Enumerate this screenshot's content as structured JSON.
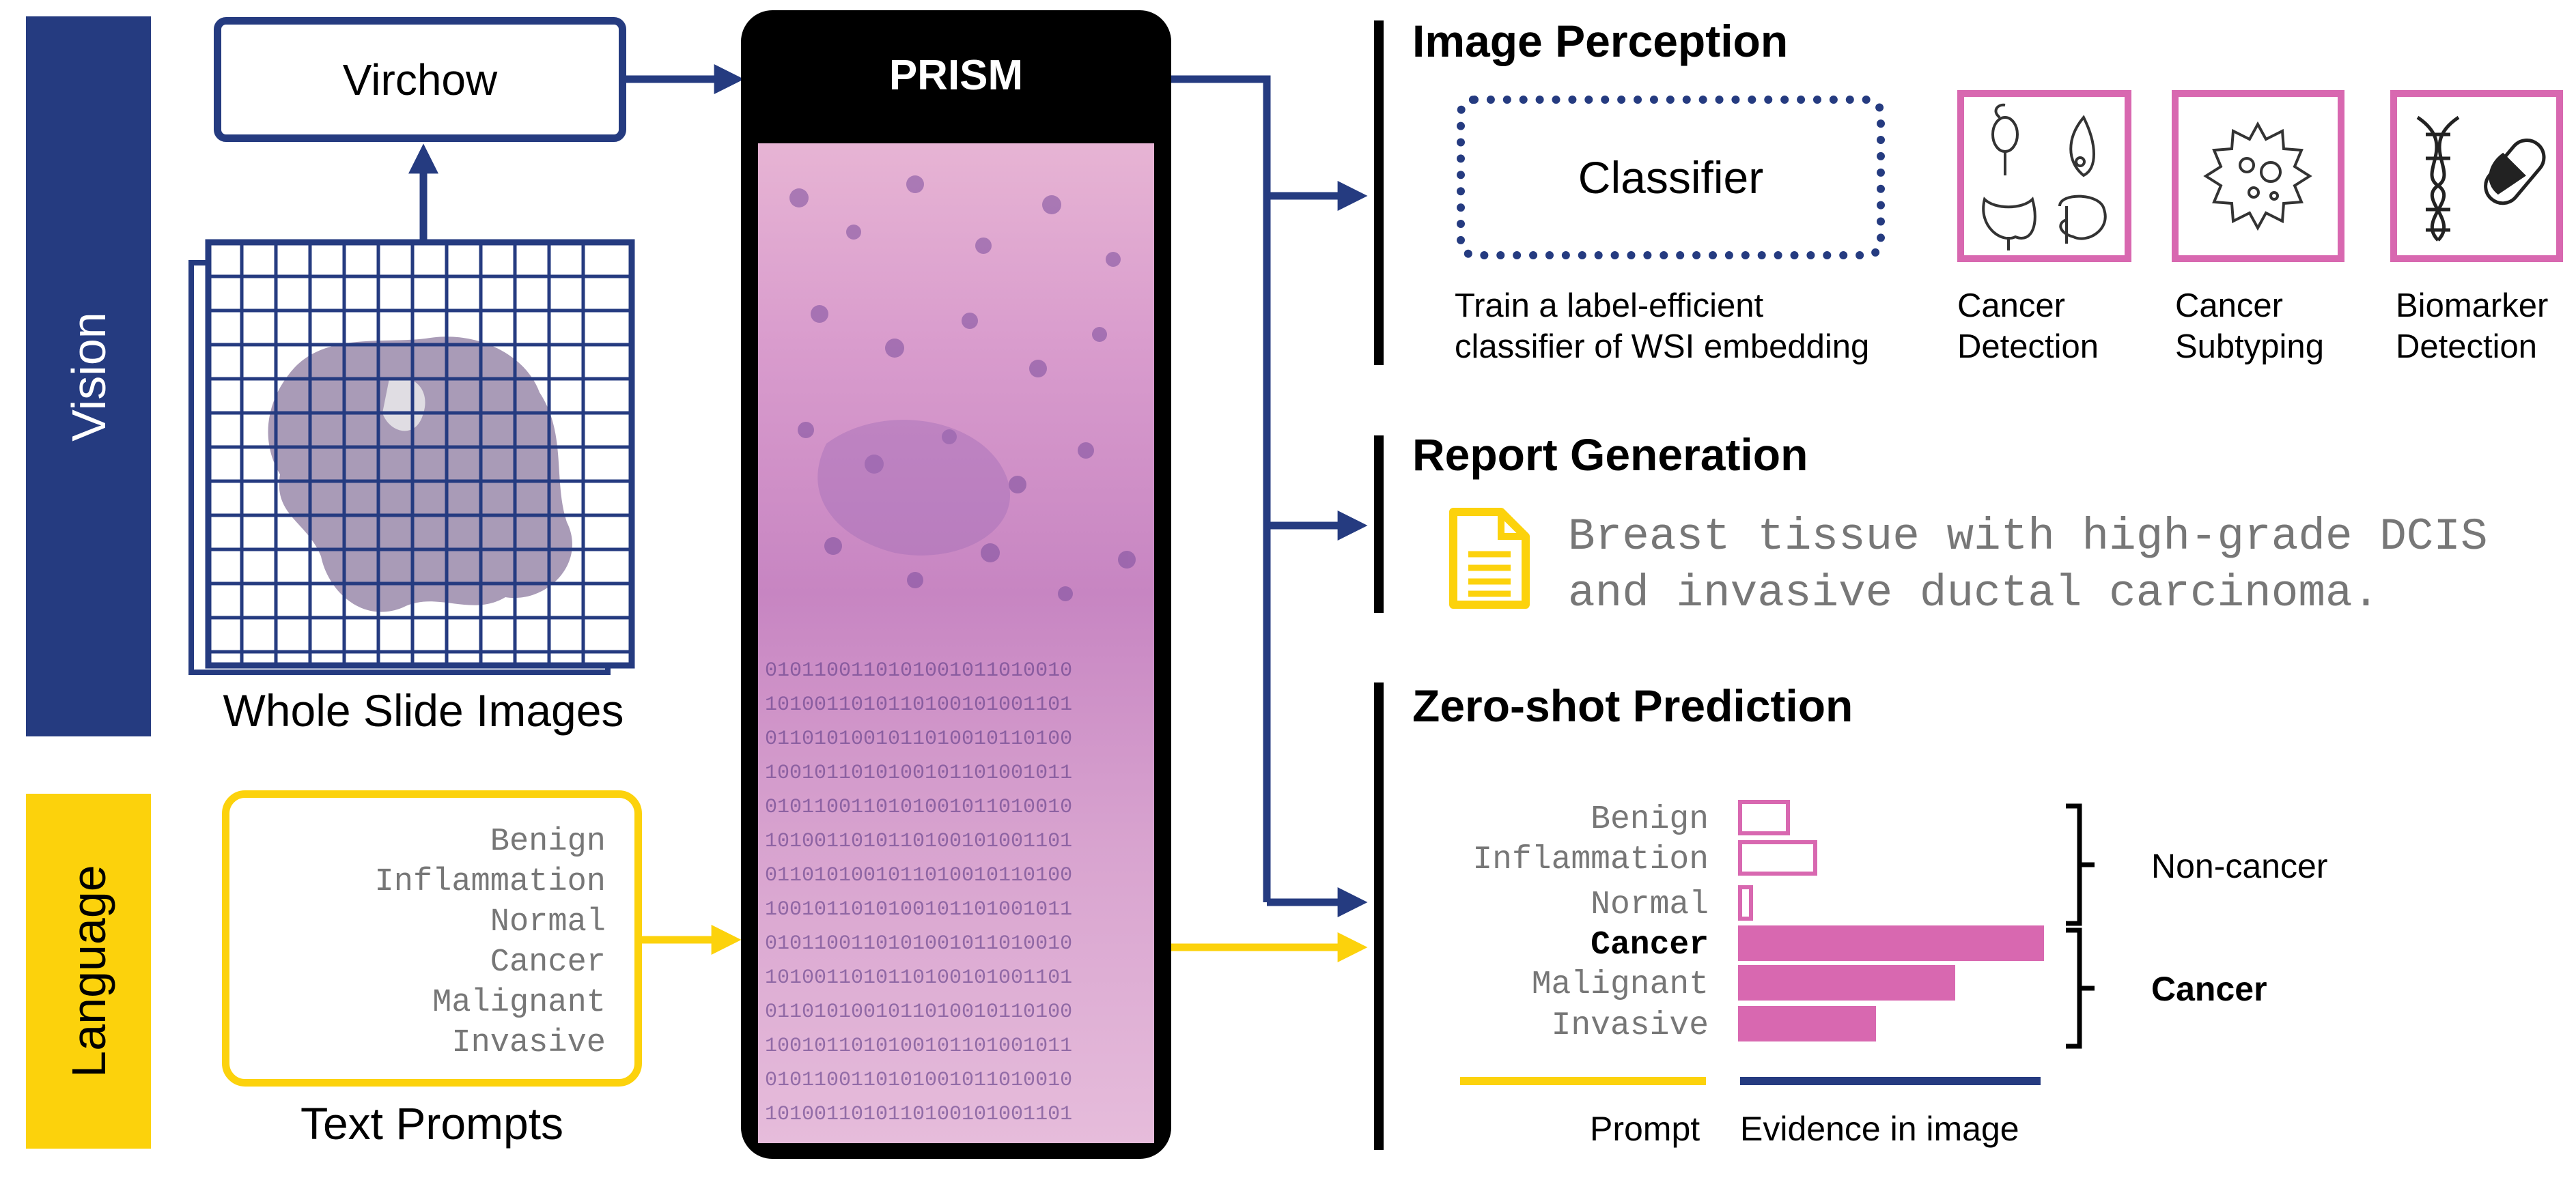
{
  "colors": {
    "navy": "#253b80",
    "yellow": "#fcd20c",
    "pink": "#d868b0",
    "black": "#000000",
    "gray_text": "#777777"
  },
  "sidebar": {
    "vision_label": "Vision",
    "language_label": "Language"
  },
  "virchow": {
    "label": "Virchow"
  },
  "wsi": {
    "label": "Whole Slide Images"
  },
  "prompts": {
    "items": [
      "Benign",
      "Inflammation",
      "Normal",
      "Cancer",
      "Malignant",
      "Invasive"
    ],
    "label": "Text Prompts"
  },
  "prism": {
    "title": "PRISM"
  },
  "image_perception": {
    "title": "Image Perception",
    "classifier_label": "Classifier",
    "classifier_caption": [
      "Train a label-efficient",
      "classifier of WSI embedding"
    ],
    "tasks": [
      {
        "label": [
          "Cancer",
          "Detection"
        ],
        "icon": "organs-icon"
      },
      {
        "label": [
          "Cancer",
          "Subtyping"
        ],
        "icon": "cancer-cell-icon"
      },
      {
        "label": [
          "Biomarker",
          "Detection"
        ],
        "icon": "dna-pill-icon"
      }
    ]
  },
  "report_generation": {
    "title": "Report Generation",
    "icon": "document-icon",
    "text": [
      "Breast tissue with high-grade DCIS",
      "and invasive ductal carcinoma."
    ]
  },
  "zero_shot": {
    "title": "Zero-shot Prediction",
    "rows": [
      {
        "label": "Benign",
        "value": 0.17,
        "style": "outline",
        "bold": false
      },
      {
        "label": "Inflammation",
        "value": 0.26,
        "style": "outline",
        "bold": false
      },
      {
        "label": "Normal",
        "value": 0.05,
        "style": "outline",
        "bold": false
      },
      {
        "label": "Cancer",
        "value": 1.0,
        "style": "filled",
        "bold": true
      },
      {
        "label": "Malignant",
        "value": 0.71,
        "style": "filled",
        "bold": false
      },
      {
        "label": "Invasive",
        "value": 0.45,
        "style": "filled",
        "bold": false
      }
    ],
    "groups": [
      {
        "label": "Non-cancer",
        "bold": false
      },
      {
        "label": "Cancer",
        "bold": true
      }
    ],
    "legend": {
      "prompt": "Prompt",
      "evidence": "Evidence in image"
    }
  }
}
